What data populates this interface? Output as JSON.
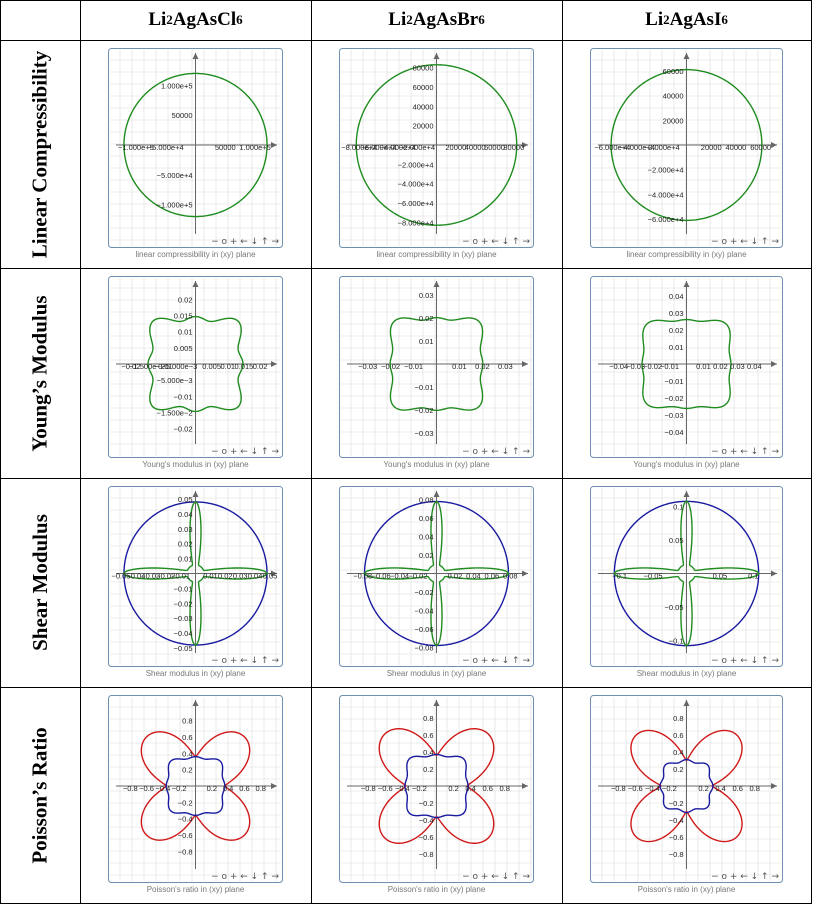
{
  "columns": [
    {
      "base": "Li",
      "s1": "2",
      "mid": "AgAsCl",
      "s2": "6"
    },
    {
      "base": "Li",
      "s1": "2",
      "mid": "AgAsBr",
      "s2": "6"
    },
    {
      "base": "Li",
      "s1": "2",
      "mid": "AgAsI",
      "s2": "6"
    }
  ],
  "rows": [
    "Linear Compressibility",
    "Young’s Modulus",
    "Shear Modulus",
    "Poisson’s Ratio"
  ],
  "captions": [
    "linear compressibility in (xy) plane",
    "Young's modulus in (xy) plane",
    "Shear modulus in (xy) plane",
    "Poisson's ratio in (xy) plane"
  ],
  "nav_controls": "−  o  +  ←  ↓  ↑  →",
  "colors": {
    "green": "#1e8c1e",
    "blue": "#1a1aa0",
    "red": "#d01818",
    "grid": "#dcdcdc",
    "frame": "#6f8fb0"
  },
  "chart_data": [
    {
      "type": "polar",
      "row": "Linear Compressibility",
      "column": "Li2AgAsCl6",
      "xticks": [
        "−1.000e+5",
        "−5.000e+4",
        "50000",
        "1.000e+5"
      ],
      "yticks": [
        "1.000e+5",
        "50000",
        "−5.000e+4",
        "−1.000e+5"
      ],
      "series": [
        {
          "color": "green",
          "shape": "circle",
          "radius": 120000
        }
      ],
      "range": [
        -130000,
        130000
      ]
    },
    {
      "type": "polar",
      "row": "Linear Compressibility",
      "column": "Li2AgAsBr6",
      "xticks": [
        "−8.000e+4",
        "−6.000e+4",
        "−4.000e+4",
        "−2.000e+4",
        "20000",
        "40000",
        "60000",
        "80000"
      ],
      "yticks": [
        "80000",
        "60000",
        "40000",
        "20000",
        "−2.000e+4",
        "−4.000e+4",
        "−6.000e+4",
        "−8.000e+4"
      ],
      "series": [
        {
          "color": "green",
          "shape": "circle",
          "radius": 83000
        }
      ],
      "range": [
        -90000,
        90000
      ]
    },
    {
      "type": "polar",
      "row": "Linear Compressibility",
      "column": "Li2AgAsI6",
      "xticks": [
        "−6.000e+4",
        "−4.000e+4",
        "−2.000e+4",
        "20000",
        "40000",
        "60000"
      ],
      "yticks": [
        "60000",
        "40000",
        "20000",
        "−2.000e+4",
        "−4.000e+4",
        "−6.000e+4"
      ],
      "series": [
        {
          "color": "green",
          "shape": "circle",
          "radius": 61000
        }
      ],
      "range": [
        -70000,
        70000
      ]
    },
    {
      "type": "polar",
      "row": "Young's Modulus",
      "column": "Li2AgAsCl6",
      "xticks": [
        "−0.02",
        "−1.500e−2",
        "−0.01",
        "−5.000e−3",
        "0.005",
        "0.01",
        "0.015",
        "0.02"
      ],
      "yticks": [
        "0.02",
        "0.015",
        "0.01",
        "0.005",
        "−5.000e−3",
        "−0.01",
        "−1.500e−2",
        "−0.02"
      ],
      "series": [
        {
          "color": "green",
          "shape": "lobed",
          "axis": 0.0135,
          "diag": 0.0175
        }
      ],
      "range": [
        -0.024,
        0.024
      ]
    },
    {
      "type": "polar",
      "row": "Young's Modulus",
      "column": "Li2AgAsBr6",
      "xticks": [
        "−0.03",
        "−0.02",
        "−0.01",
        "0.01",
        "0.02",
        "0.03"
      ],
      "yticks": [
        "0.03",
        "0.02",
        "0.01",
        "−0.01",
        "−0.02",
        "−0.03"
      ],
      "series": [
        {
          "color": "green",
          "shape": "lobed",
          "axis": 0.019,
          "diag": 0.025
        }
      ],
      "range": [
        -0.034,
        0.034
      ]
    },
    {
      "type": "polar",
      "row": "Young's Modulus",
      "column": "Li2AgAsI6",
      "xticks": [
        "−0.04",
        "−0.03",
        "−0.02",
        "−0.01",
        "0.01",
        "0.02",
        "0.03",
        "0.04"
      ],
      "yticks": [
        "0.04",
        "0.03",
        "0.02",
        "0.01",
        "−0.01",
        "−0.02",
        "−0.03",
        "−0.04"
      ],
      "series": [
        {
          "color": "green",
          "shape": "lobed",
          "axis": 0.025,
          "diag": 0.032
        }
      ],
      "range": [
        -0.046,
        0.046
      ]
    },
    {
      "type": "polar",
      "row": "Shear Modulus",
      "column": "Li2AgAsCl6",
      "xticks": [
        "−0.05",
        "−0.04",
        "−0.03",
        "−0.02",
        "−0.01",
        "0.01",
        "0.02",
        "0.03",
        "0.04",
        "0.05"
      ],
      "yticks": [
        "0.05",
        "0.04",
        "0.03",
        "0.02",
        "0.01",
        "−0.01",
        "−0.02",
        "−0.03",
        "−0.04",
        "−0.05"
      ],
      "series": [
        {
          "color": "blue",
          "shape": "circle",
          "radius": 0.048
        },
        {
          "color": "green",
          "shape": "cross",
          "radius": 0.048
        }
      ],
      "range": [
        -0.052,
        0.052
      ]
    },
    {
      "type": "polar",
      "row": "Shear Modulus",
      "column": "Li2AgAsBr6",
      "xticks": [
        "−0.08",
        "−0.06",
        "−0.04",
        "−0.02",
        "0.02",
        "0.04",
        "0.06",
        "0.08"
      ],
      "yticks": [
        "0.08",
        "0.06",
        "0.04",
        "0.02",
        "−0.02",
        "−0.04",
        "−0.06",
        "−0.08"
      ],
      "series": [
        {
          "color": "blue",
          "shape": "circle",
          "radius": 0.078
        },
        {
          "color": "green",
          "shape": "cross",
          "radius": 0.078
        }
      ],
      "range": [
        -0.084,
        0.084
      ]
    },
    {
      "type": "polar",
      "row": "Shear Modulus",
      "column": "Li2AgAsI6",
      "xticks": [
        "−0.1",
        "−0.05",
        "0.05",
        "0.1"
      ],
      "yticks": [
        "0.1",
        "0.05",
        "−0.05",
        "−0.1"
      ],
      "series": [
        {
          "color": "blue",
          "shape": "circle",
          "radius": 0.108
        },
        {
          "color": "green",
          "shape": "cross",
          "radius": 0.108
        }
      ],
      "range": [
        -0.116,
        0.116
      ]
    },
    {
      "type": "polar",
      "row": "Poisson's Ratio",
      "column": "Li2AgAsCl6",
      "xticks": [
        "−0.8",
        "−0.6",
        "−0.4",
        "−0.2",
        "0.2",
        "0.4",
        "0.6",
        "0.8"
      ],
      "yticks": [
        "0.8",
        "0.6",
        "0.4",
        "0.2",
        "−0.2",
        "−0.4",
        "−0.6",
        "−0.8"
      ],
      "series": [
        {
          "color": "red",
          "shape": "petal",
          "axis": 0.36,
          "diag": 0.85
        },
        {
          "color": "blue",
          "shape": "squircle",
          "axis": 0.34,
          "diag": 0.41
        }
      ],
      "range": [
        -0.95,
        0.95
      ]
    },
    {
      "type": "polar",
      "row": "Poisson's Ratio",
      "column": "Li2AgAsBr6",
      "xticks": [
        "−0.8",
        "−0.6",
        "−0.4",
        "−0.2",
        "0.2",
        "0.4",
        "0.6",
        "0.8"
      ],
      "yticks": [
        "0.8",
        "0.6",
        "0.4",
        "0.2",
        "−0.2",
        "−0.4",
        "−0.6",
        "−0.8"
      ],
      "series": [
        {
          "color": "red",
          "shape": "petal",
          "axis": 0.36,
          "diag": 0.86
        },
        {
          "color": "blue",
          "shape": "squircle",
          "axis": 0.35,
          "diag": 0.43
        }
      ],
      "range": [
        -0.95,
        0.95
      ]
    },
    {
      "type": "polar",
      "row": "Poisson's Ratio",
      "column": "Li2AgAsI6",
      "xticks": [
        "−0.8",
        "−0.6",
        "−0.4",
        "−0.2",
        "0.2",
        "0.4",
        "0.6",
        "0.8"
      ],
      "yticks": [
        "0.8",
        "0.6",
        "0.4",
        "0.2",
        "−0.2",
        "−0.4",
        "−0.6",
        "−0.8"
      ],
      "series": [
        {
          "color": "red",
          "shape": "petal",
          "axis": 0.3,
          "diag": 0.84
        },
        {
          "color": "blue",
          "shape": "squircle",
          "axis": 0.29,
          "diag": 0.33
        }
      ],
      "range": [
        -0.95,
        0.95
      ]
    }
  ]
}
